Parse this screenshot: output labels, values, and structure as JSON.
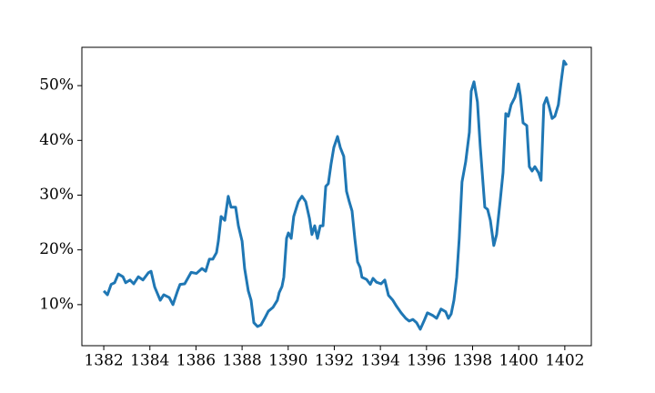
{
  "chart_data": {
    "type": "line",
    "x": [
      1382.0,
      1382.16,
      1382.32,
      1382.47,
      1382.63,
      1382.83,
      1382.95,
      1383.14,
      1383.3,
      1383.5,
      1383.7,
      1383.93,
      1384.05,
      1384.21,
      1384.45,
      1384.6,
      1384.84,
      1385.0,
      1385.2,
      1385.31,
      1385.51,
      1385.79,
      1386.02,
      1386.26,
      1386.42,
      1386.58,
      1386.73,
      1386.89,
      1386.97,
      1387.09,
      1387.25,
      1387.4,
      1387.52,
      1387.72,
      1387.84,
      1388.0,
      1388.11,
      1388.27,
      1388.39,
      1388.51,
      1388.67,
      1388.82,
      1388.98,
      1389.14,
      1389.34,
      1389.53,
      1389.61,
      1389.73,
      1389.81,
      1389.93,
      1390.01,
      1390.13,
      1390.24,
      1390.44,
      1390.6,
      1390.76,
      1390.92,
      1391.03,
      1391.15,
      1391.27,
      1391.39,
      1391.51,
      1391.63,
      1391.74,
      1391.86,
      1391.98,
      1392.14,
      1392.26,
      1392.41,
      1392.53,
      1392.65,
      1392.77,
      1392.89,
      1393.01,
      1393.12,
      1393.2,
      1393.4,
      1393.56,
      1393.68,
      1393.83,
      1394.03,
      1394.19,
      1394.35,
      1394.54,
      1394.7,
      1394.9,
      1395.1,
      1395.25,
      1395.41,
      1395.57,
      1395.73,
      1395.89,
      1396.04,
      1396.28,
      1396.44,
      1396.63,
      1396.83,
      1396.95,
      1397.07,
      1397.19,
      1397.31,
      1397.42,
      1397.54,
      1397.7,
      1397.86,
      1397.94,
      1398.06,
      1398.21,
      1398.33,
      1398.53,
      1398.65,
      1398.77,
      1398.92,
      1399.04,
      1399.2,
      1399.32,
      1399.44,
      1399.55,
      1399.67,
      1399.83,
      1399.99,
      1400.07,
      1400.19,
      1400.35,
      1400.46,
      1400.58,
      1400.7,
      1400.86,
      1400.97,
      1401.09,
      1401.21,
      1401.33,
      1401.45,
      1401.57,
      1401.72,
      1401.84,
      1401.96,
      1402.08
    ],
    "series": [
      {
        "color": "#1f77b4",
        "values": [
          12.5,
          11.8,
          13.7,
          14.0,
          15.6,
          15.1,
          14.0,
          14.5,
          13.8,
          15.1,
          14.5,
          15.8,
          16.1,
          13.2,
          10.8,
          11.8,
          11.3,
          10.0,
          12.5,
          13.7,
          13.8,
          15.9,
          15.7,
          16.6,
          16.1,
          18.3,
          18.3,
          19.5,
          21.6,
          26.1,
          25.4,
          29.8,
          27.8,
          27.8,
          24.4,
          21.6,
          16.6,
          12.5,
          10.8,
          6.7,
          6.0,
          6.3,
          7.5,
          8.8,
          9.5,
          10.8,
          12.2,
          13.3,
          15.0,
          22.1,
          23.1,
          22.1,
          26.1,
          28.8,
          29.8,
          28.8,
          25.8,
          22.8,
          24.4,
          22.1,
          24.4,
          24.4,
          31.6,
          32.1,
          35.7,
          38.7,
          40.7,
          38.7,
          37.1,
          30.7,
          28.8,
          27.1,
          22.1,
          17.8,
          16.8,
          15.0,
          14.6,
          13.7,
          14.8,
          14.1,
          13.8,
          14.5,
          11.7,
          10.8,
          9.7,
          8.5,
          7.5,
          7.0,
          7.3,
          6.7,
          5.5,
          7.0,
          8.5,
          8.0,
          7.5,
          9.2,
          8.7,
          7.5,
          8.3,
          10.8,
          15.0,
          22.1,
          32.4,
          36.1,
          41.5,
          49.0,
          50.7,
          47.0,
          39.0,
          27.8,
          27.4,
          25.4,
          20.8,
          22.8,
          29.1,
          34.1,
          44.9,
          44.4,
          46.5,
          47.8,
          50.3,
          48.2,
          43.2,
          42.7,
          35.2,
          34.4,
          35.2,
          34.1,
          32.7,
          46.5,
          47.8,
          46.0,
          44.0,
          44.4,
          46.5,
          50.7,
          54.5,
          53.7
        ]
      }
    ],
    "xlim": [
      1381.05,
      1403.15
    ],
    "xticks": [
      1382,
      1384,
      1386,
      1388,
      1390,
      1392,
      1394,
      1396,
      1398,
      1400,
      1402
    ],
    "ylim": [
      2.5,
      57
    ],
    "yticks": [
      {
        "value": 10,
        "label": "10%"
      },
      {
        "value": 20,
        "label": "20%"
      },
      {
        "value": 30,
        "label": "30%"
      },
      {
        "value": 40,
        "label": "40%"
      },
      {
        "value": 50,
        "label": "50%"
      }
    ],
    "grid": false
  }
}
